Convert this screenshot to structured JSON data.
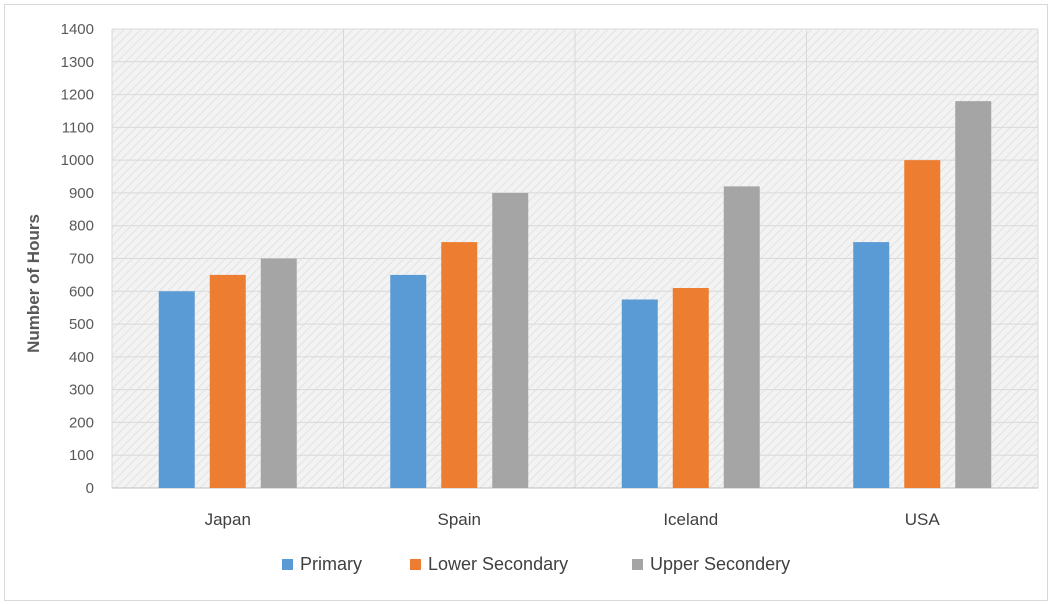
{
  "chart_data": {
    "type": "bar",
    "title": "",
    "xlabel": "",
    "ylabel": "Number of Hours",
    "ylim": [
      0,
      1400
    ],
    "yticks": [
      0,
      100,
      200,
      300,
      400,
      500,
      600,
      700,
      800,
      900,
      1000,
      1100,
      1200,
      1300,
      1400
    ],
    "categories": [
      "Japan",
      "Spain",
      "Iceland",
      "USA"
    ],
    "series": [
      {
        "name": "Primary",
        "values": [
          600,
          650,
          575,
          750
        ]
      },
      {
        "name": "Lower Secondary",
        "values": [
          650,
          750,
          610,
          1000
        ]
      },
      {
        "name": "Upper Secondery",
        "values": [
          700,
          900,
          920,
          1180
        ]
      }
    ],
    "legend_position": "bottom",
    "grid": true
  },
  "colors": {
    "Primary": "#5b9bd5",
    "Lower Secondary": "#ed7d31",
    "Upper Secondery": "#a5a5a5",
    "grid": "#d9d9d9",
    "plot_background": "#f2f2f2"
  }
}
